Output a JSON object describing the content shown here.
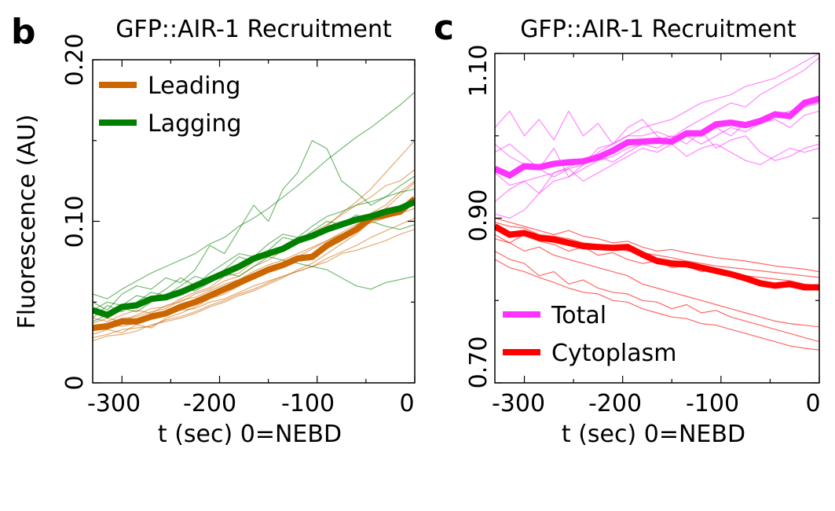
{
  "panels": [
    {
      "letter": "b",
      "title": "GFP::AIR-1 Recruitment",
      "xlabel": "t (sec) 0=NEBD",
      "ylabel": "Fluorescence (AU)",
      "xticks": [
        "-300",
        "-200",
        "-100",
        "0"
      ],
      "yticks": [
        "0",
        "0.10",
        "0.20"
      ]
    },
    {
      "letter": "c",
      "title": "GFP::AIR-1 Recruitment",
      "xlabel": "t (sec) 0=NEBD",
      "ylabel": "",
      "xticks": [
        "-300",
        "-200",
        "-100",
        "0"
      ],
      "yticks": [
        "0.70",
        "0.90",
        "1.10"
      ]
    }
  ],
  "chart_data": [
    {
      "type": "line",
      "title": "GFP::AIR-1 Recruitment",
      "xlabel": "t (sec) 0=NEBD",
      "ylabel": "Fluorescence (AU)",
      "xlim": [
        -330,
        0
      ],
      "ylim": [
        0,
        0.2
      ],
      "xticks": [
        -300,
        -200,
        -100,
        0
      ],
      "yticks": [
        0,
        0.1,
        0.2
      ],
      "grid": false,
      "legend": "top-left",
      "x": [
        -330,
        -315,
        -300,
        -285,
        -270,
        -255,
        -240,
        -225,
        -210,
        -195,
        -180,
        -165,
        -150,
        -135,
        -120,
        -105,
        -90,
        -75,
        -60,
        -45,
        -30,
        -15,
        0
      ],
      "series": [
        {
          "name": "Leading",
          "color": "#cc6600",
          "role": "mean",
          "values": [
            0.034,
            0.035,
            0.038,
            0.038,
            0.041,
            0.043,
            0.047,
            0.05,
            0.054,
            0.058,
            0.062,
            0.066,
            0.07,
            0.073,
            0.077,
            0.078,
            0.085,
            0.09,
            0.095,
            0.102,
            0.104,
            0.106,
            0.114
          ]
        },
        {
          "name": "Lagging",
          "color": "#008000",
          "role": "mean",
          "values": [
            0.045,
            0.042,
            0.047,
            0.048,
            0.052,
            0.053,
            0.056,
            0.06,
            0.064,
            0.068,
            0.072,
            0.077,
            0.08,
            0.083,
            0.088,
            0.091,
            0.095,
            0.098,
            0.101,
            0.103,
            0.106,
            0.108,
            0.112
          ]
        }
      ],
      "traces": {
        "Leading": [
          [
            0.03,
            0.033,
            0.031,
            0.036,
            0.034,
            0.04,
            0.043,
            0.047,
            0.052,
            0.055,
            0.06,
            0.065,
            0.07,
            0.072,
            0.078,
            0.083,
            0.088,
            0.093,
            0.098,
            0.105,
            0.11,
            0.118,
            0.125
          ],
          [
            0.037,
            0.04,
            0.038,
            0.042,
            0.046,
            0.047,
            0.052,
            0.056,
            0.059,
            0.066,
            0.068,
            0.075,
            0.079,
            0.084,
            0.088,
            0.093,
            0.098,
            0.104,
            0.11,
            0.115,
            0.122,
            0.125,
            0.132
          ],
          [
            0.028,
            0.03,
            0.033,
            0.034,
            0.035,
            0.039,
            0.041,
            0.044,
            0.048,
            0.051,
            0.055,
            0.058,
            0.062,
            0.066,
            0.069,
            0.072,
            0.077,
            0.081,
            0.085,
            0.09,
            0.094,
            0.098,
            0.102
          ],
          [
            0.04,
            0.038,
            0.042,
            0.045,
            0.043,
            0.048,
            0.05,
            0.055,
            0.058,
            0.063,
            0.066,
            0.072,
            0.076,
            0.082,
            0.086,
            0.092,
            0.097,
            0.105,
            0.112,
            0.12,
            0.13,
            0.14,
            0.15
          ],
          [
            0.032,
            0.036,
            0.035,
            0.037,
            0.04,
            0.042,
            0.045,
            0.046,
            0.05,
            0.052,
            0.056,
            0.06,
            0.063,
            0.066,
            0.069,
            0.072,
            0.075,
            0.08,
            0.082,
            0.085,
            0.088,
            0.092,
            0.095
          ],
          [
            0.026,
            0.029,
            0.03,
            0.032,
            0.036,
            0.038,
            0.04,
            0.043,
            0.047,
            0.05,
            0.054,
            0.057,
            0.061,
            0.065,
            0.07,
            0.074,
            0.08,
            0.086,
            0.092,
            0.1,
            0.108,
            0.116,
            0.124
          ],
          [
            0.035,
            0.037,
            0.04,
            0.041,
            0.044,
            0.046,
            0.051,
            0.053,
            0.057,
            0.061,
            0.064,
            0.069,
            0.073,
            0.076,
            0.08,
            0.084,
            0.088,
            0.092,
            0.096,
            0.099,
            0.102,
            0.105,
            0.108
          ]
        ],
        "Lagging": [
          [
            0.05,
            0.045,
            0.055,
            0.06,
            0.058,
            0.065,
            0.062,
            0.07,
            0.085,
            0.08,
            0.095,
            0.11,
            0.1,
            0.12,
            0.13,
            0.15,
            0.145,
            0.125,
            0.118,
            0.11,
            0.115,
            0.122,
            0.128
          ],
          [
            0.04,
            0.048,
            0.044,
            0.05,
            0.056,
            0.054,
            0.06,
            0.066,
            0.063,
            0.07,
            0.078,
            0.075,
            0.082,
            0.09,
            0.088,
            0.094,
            0.1,
            0.098,
            0.104,
            0.1,
            0.097,
            0.095,
            0.098
          ],
          [
            0.055,
            0.052,
            0.058,
            0.063,
            0.068,
            0.072,
            0.076,
            0.08,
            0.086,
            0.09,
            0.097,
            0.102,
            0.108,
            0.115,
            0.122,
            0.13,
            0.138,
            0.145,
            0.152,
            0.158,
            0.165,
            0.172,
            0.18
          ],
          [
            0.038,
            0.042,
            0.046,
            0.044,
            0.05,
            0.055,
            0.058,
            0.057,
            0.062,
            0.068,
            0.066,
            0.072,
            0.078,
            0.076,
            0.074,
            0.072,
            0.07,
            0.065,
            0.06,
            0.058,
            0.062,
            0.064,
            0.066
          ],
          [
            0.045,
            0.05,
            0.048,
            0.054,
            0.052,
            0.058,
            0.065,
            0.06,
            0.068,
            0.074,
            0.08,
            0.078,
            0.086,
            0.092,
            0.09,
            0.097,
            0.103,
            0.106,
            0.11,
            0.112,
            0.115,
            0.118,
            0.12
          ]
        ]
      }
    },
    {
      "type": "line",
      "title": "GFP::AIR-1 Recruitment",
      "xlabel": "t (sec) 0=NEBD",
      "ylabel": "",
      "xlim": [
        -330,
        0
      ],
      "ylim": [
        0.7,
        1.1
      ],
      "xticks": [
        -300,
        -200,
        -100,
        0
      ],
      "yticks": [
        0.7,
        0.9,
        1.1
      ],
      "grid": false,
      "legend": "bottom-left",
      "x": [
        -330,
        -315,
        -300,
        -285,
        -270,
        -255,
        -240,
        -225,
        -210,
        -195,
        -180,
        -165,
        -150,
        -135,
        -120,
        -105,
        -90,
        -75,
        -60,
        -45,
        -30,
        -15,
        0
      ],
      "series": [
        {
          "name": "Total",
          "color": "#ff33ff",
          "role": "mean",
          "values": [
            0.96,
            0.952,
            0.963,
            0.962,
            0.966,
            0.968,
            0.969,
            0.974,
            0.982,
            0.992,
            0.993,
            0.994,
            0.993,
            1.003,
            1.003,
            1.014,
            1.016,
            1.013,
            1.018,
            1.026,
            1.024,
            1.04,
            1.045
          ]
        },
        {
          "name": "Cytoplasm",
          "color": "#ff0000",
          "role": "mean",
          "values": [
            0.89,
            0.88,
            0.882,
            0.876,
            0.874,
            0.87,
            0.866,
            0.865,
            0.864,
            0.865,
            0.856,
            0.848,
            0.845,
            0.844,
            0.84,
            0.836,
            0.832,
            0.827,
            0.821,
            0.818,
            0.82,
            0.816,
            0.816
          ]
        }
      ],
      "traces": {
        "Total": [
          [
            1.01,
            1.03,
            1.0,
            1.02,
            0.995,
            1.03,
            1.0,
            1.015,
            0.99,
            1.01,
            1.02,
            1.0,
            0.99,
            1.0,
            1.005,
            0.985,
            0.995,
            1.0,
            0.98,
            0.97,
            0.975,
            0.985,
            0.99
          ],
          [
            0.98,
            0.99,
            0.975,
            0.96,
            0.985,
            0.95,
            0.965,
            0.985,
            0.99,
            1.0,
            1.0,
            1.005,
            0.998,
            1.01,
            1.02,
            1.03,
            1.04,
            1.035,
            1.05,
            1.06,
            1.07,
            1.08,
            1.095
          ],
          [
            0.92,
            0.935,
            0.945,
            0.93,
            0.955,
            0.96,
            0.965,
            0.98,
            0.99,
            1.0,
            1.01,
            1.015,
            1.02,
            1.03,
            1.04,
            1.045,
            1.05,
            1.06,
            1.065,
            1.07,
            1.08,
            1.09,
            1.1
          ],
          [
            0.905,
            0.9,
            0.91,
            0.93,
            0.945,
            0.95,
            0.96,
            0.97,
            0.975,
            0.985,
            0.99,
            0.995,
            1.0,
            0.99,
            1.005,
            1.01,
            1.0,
            1.015,
            1.02,
            1.025,
            1.03,
            1.035,
            1.04
          ],
          [
            0.955,
            0.94,
            0.945,
            0.95,
            0.955,
            0.962,
            0.97,
            0.975,
            0.968,
            0.98,
            0.99,
            0.985,
            0.995,
            1.0,
            0.99,
            1.0,
            1.01,
            1.005,
            1.015,
            1.02,
            1.01,
            1.025,
            1.03
          ],
          [
            0.99,
            0.975,
            0.965,
            0.96,
            0.95,
            0.96,
            0.945,
            0.955,
            0.965,
            0.975,
            0.985,
            0.98,
            0.99,
            0.975,
            0.985,
            0.99,
            0.98,
            0.97,
            0.965,
            0.975,
            0.985,
            0.98,
            0.985
          ]
        ],
        "Cytoplasm": [
          [
            0.86,
            0.85,
            0.845,
            0.83,
            0.835,
            0.82,
            0.825,
            0.815,
            0.81,
            0.808,
            0.8,
            0.798,
            0.79,
            0.795,
            0.785,
            0.788,
            0.78,
            0.775,
            0.77,
            0.765,
            0.76,
            0.755,
            0.75
          ],
          [
            0.88,
            0.87,
            0.86,
            0.865,
            0.855,
            0.85,
            0.845,
            0.84,
            0.835,
            0.83,
            0.82,
            0.815,
            0.81,
            0.805,
            0.8,
            0.795,
            0.79,
            0.785,
            0.78,
            0.775,
            0.772,
            0.77,
            0.768
          ],
          [
            0.9,
            0.895,
            0.89,
            0.885,
            0.88,
            0.885,
            0.878,
            0.875,
            0.87,
            0.872,
            0.865,
            0.86,
            0.862,
            0.858,
            0.855,
            0.852,
            0.85,
            0.848,
            0.845,
            0.842,
            0.84,
            0.838,
            0.835
          ],
          [
            0.875,
            0.87,
            0.88,
            0.872,
            0.868,
            0.86,
            0.865,
            0.855,
            0.858,
            0.85,
            0.845,
            0.848,
            0.84,
            0.842,
            0.835,
            0.838,
            0.832,
            0.83,
            0.828,
            0.826,
            0.824,
            0.82,
            0.818
          ],
          [
            0.85,
            0.84,
            0.835,
            0.828,
            0.822,
            0.815,
            0.81,
            0.808,
            0.8,
            0.798,
            0.79,
            0.785,
            0.78,
            0.778,
            0.772,
            0.77,
            0.765,
            0.76,
            0.755,
            0.75,
            0.745,
            0.742,
            0.74
          ],
          [
            0.895,
            0.89,
            0.888,
            0.88,
            0.878,
            0.875,
            0.87,
            0.868,
            0.865,
            0.86,
            0.858,
            0.855,
            0.852,
            0.848,
            0.845,
            0.842,
            0.84,
            0.838,
            0.836,
            0.834,
            0.832,
            0.83,
            0.828
          ]
        ]
      }
    }
  ]
}
